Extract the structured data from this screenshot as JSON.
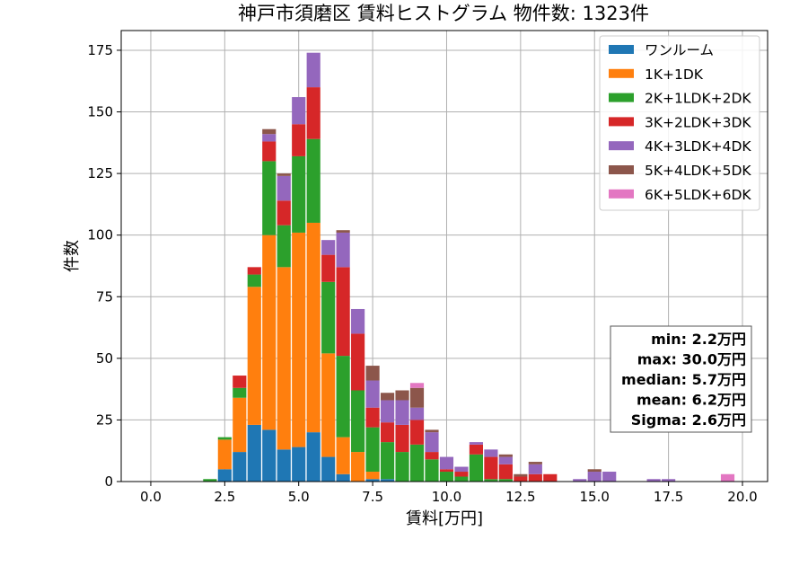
{
  "chart_data": {
    "type": "bar",
    "stacked": true,
    "title": "神戸市須磨区 賃料ヒストグラム  物件数: 1323件",
    "xlabel": "賃料[万円]",
    "ylabel": "件数",
    "xlim": [
      -1.0,
      20.85
    ],
    "ylim": [
      0,
      183
    ],
    "xticks": [
      0.0,
      2.5,
      5.0,
      7.5,
      10.0,
      12.5,
      15.0,
      17.5,
      20.0
    ],
    "xtick_labels": [
      "0.0",
      "2.5",
      "5.0",
      "7.5",
      "10.0",
      "12.5",
      "15.0",
      "17.5",
      "20.0"
    ],
    "yticks": [
      0,
      25,
      50,
      75,
      100,
      125,
      150,
      175
    ],
    "ytick_labels": [
      "0",
      "25",
      "50",
      "75",
      "100",
      "125",
      "150",
      "175"
    ],
    "grid": true,
    "legend_position": "top-right",
    "bin_width": 0.5,
    "x": [
      2.0,
      2.5,
      3.0,
      3.5,
      4.0,
      4.5,
      5.0,
      5.5,
      6.0,
      6.5,
      7.0,
      7.5,
      8.0,
      8.5,
      9.0,
      9.5,
      10.0,
      10.5,
      11.0,
      11.5,
      12.0,
      12.5,
      13.0,
      13.5,
      14.0,
      14.5,
      15.0,
      15.5,
      16.0,
      16.5,
      17.0,
      17.5,
      18.0,
      18.5,
      19.0,
      19.5
    ],
    "series": [
      {
        "name": "ワンルーム",
        "color": "#1f77b4",
        "values": [
          0,
          5,
          12,
          23,
          21,
          13,
          14,
          20,
          10,
          3,
          0,
          1,
          1,
          0,
          0,
          0,
          0,
          0,
          0,
          0,
          0,
          0,
          0,
          0,
          0,
          0,
          0,
          0,
          0,
          0,
          0,
          0,
          0,
          0,
          0,
          0
        ]
      },
      {
        "name": "1K+1DK",
        "color": "#ff7f0e",
        "values": [
          0,
          12,
          22,
          56,
          79,
          74,
          87,
          85,
          42,
          15,
          12,
          3,
          0,
          0,
          0,
          0,
          0,
          0,
          0,
          0,
          0,
          0,
          0,
          0,
          0,
          0,
          0,
          0,
          0,
          0,
          0,
          0,
          0,
          0,
          0,
          0
        ]
      },
      {
        "name": "2K+1LDK+2DK",
        "color": "#2ca02c",
        "values": [
          1,
          1,
          4,
          5,
          30,
          17,
          31,
          34,
          29,
          33,
          25,
          18,
          15,
          12,
          15,
          9,
          4,
          2,
          11,
          1,
          1,
          0,
          0,
          0,
          0,
          0,
          0,
          0,
          0,
          0,
          0,
          0,
          0,
          0,
          0,
          0
        ]
      },
      {
        "name": "3K+2LDK+3DK",
        "color": "#d62728",
        "values": [
          0,
          0,
          5,
          3,
          8,
          10,
          13,
          21,
          11,
          36,
          23,
          8,
          8,
          11,
          10,
          3,
          1,
          2,
          4,
          9,
          6,
          2,
          3,
          3,
          0,
          0,
          0,
          0,
          0,
          0,
          0,
          0,
          0,
          0,
          0,
          0
        ]
      },
      {
        "name": "4K+3LDK+4DK",
        "color": "#9467bd",
        "values": [
          0,
          0,
          0,
          0,
          3,
          10,
          11,
          14,
          6,
          14,
          10,
          11,
          9,
          10,
          5,
          8,
          5,
          2,
          1,
          3,
          3,
          0,
          4,
          0,
          0,
          1,
          4,
          4,
          0,
          0,
          1,
          1,
          0,
          0,
          0,
          0
        ]
      },
      {
        "name": "5K+4LDK+5DK",
        "color": "#8c564b",
        "values": [
          0,
          0,
          0,
          0,
          2,
          1,
          0,
          0,
          0,
          1,
          0,
          6,
          3,
          4,
          8,
          1,
          0,
          0,
          0,
          0,
          1,
          1,
          1,
          0,
          0,
          0,
          1,
          0,
          0,
          0,
          0,
          0,
          0,
          0,
          0,
          0
        ]
      },
      {
        "name": "6K+5LDK+6DK",
        "color": "#e377c2",
        "values": [
          0,
          0,
          0,
          0,
          0,
          0,
          0,
          0,
          0,
          0,
          0,
          0,
          0,
          0,
          2,
          0,
          0,
          0,
          0,
          0,
          0,
          0,
          0,
          0,
          0,
          0,
          0,
          0,
          0,
          0,
          0,
          0,
          0,
          0,
          0,
          3
        ]
      }
    ],
    "stats_box": {
      "lines": [
        "min: 2.2万円",
        "max: 30.0万円",
        "median: 5.7万円",
        "mean: 6.2万円",
        "Sigma: 2.6万円"
      ]
    }
  }
}
